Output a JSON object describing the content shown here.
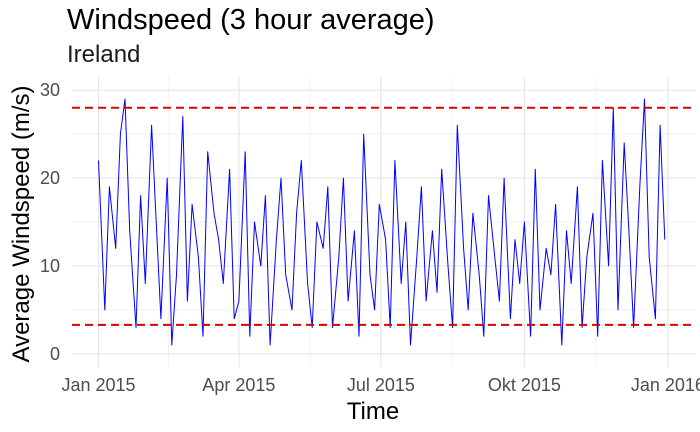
{
  "chart_data": {
    "type": "line",
    "title": "Windspeed (3 hour average)",
    "subtitle": "Ireland",
    "xlabel": "Time",
    "ylabel": "Average Windspeed (m/s)",
    "x_tick_labels": [
      "Jan 2015",
      "Apr 2015",
      "Jul 2015",
      "Okt 2015",
      "Jan 2016"
    ],
    "x_ticks": [
      "2015-01-01",
      "2015-04-01",
      "2015-07-01",
      "2015-10-01",
      "2016-01-01"
    ],
    "y_ticks": [
      0,
      10,
      20,
      30
    ],
    "xlim": [
      "2014-12-15",
      "2016-01-19"
    ],
    "ylim": [
      -1.5,
      31.5
    ],
    "grid": true,
    "series_color": "#0000ff",
    "reference_line_color": "#dd0000",
    "reference_lines": [
      28.0,
      3.3
    ],
    "series": [
      {
        "x": [
          "2015-01-01",
          "2015-01-05",
          "2015-01-08",
          "2015-01-12",
          "2015-01-15",
          "2015-01-18",
          "2015-01-21",
          "2015-01-25",
          "2015-01-28",
          "2015-01-31",
          "2015-02-04",
          "2015-02-07",
          "2015-02-10",
          "2015-02-14",
          "2015-02-17",
          "2015-02-20",
          "2015-02-24",
          "2015-02-27",
          "2015-03-02",
          "2015-03-06",
          "2015-03-09",
          "2015-03-12",
          "2015-03-16",
          "2015-03-19",
          "2015-03-22",
          "2015-03-26",
          "2015-03-29",
          "2015-04-01",
          "2015-04-05",
          "2015-04-08",
          "2015-04-11",
          "2015-04-15",
          "2015-04-18",
          "2015-04-21",
          "2015-04-25",
          "2015-04-28",
          "2015-05-01",
          "2015-05-05",
          "2015-05-08",
          "2015-05-11",
          "2015-05-15",
          "2015-05-18",
          "2015-05-21",
          "2015-05-25",
          "2015-05-28",
          "2015-05-31",
          "2015-06-04",
          "2015-06-07",
          "2015-06-10",
          "2015-06-14",
          "2015-06-17",
          "2015-06-20",
          "2015-06-24",
          "2015-06-27",
          "2015-06-30",
          "2015-07-04",
          "2015-07-07",
          "2015-07-10",
          "2015-07-14",
          "2015-07-17",
          "2015-07-20",
          "2015-07-24",
          "2015-07-27",
          "2015-07-30",
          "2015-08-03",
          "2015-08-06",
          "2015-08-09",
          "2015-08-13",
          "2015-08-16",
          "2015-08-19",
          "2015-08-23",
          "2015-08-26",
          "2015-08-29",
          "2015-09-02",
          "2015-09-05",
          "2015-09-08",
          "2015-09-12",
          "2015-09-15",
          "2015-09-18",
          "2015-09-22",
          "2015-09-25",
          "2015-09-28",
          "2015-10-01",
          "2015-10-05",
          "2015-10-08",
          "2015-10-11",
          "2015-10-15",
          "2015-10-18",
          "2015-10-21",
          "2015-10-25",
          "2015-10-28",
          "2015-10-31",
          "2015-11-04",
          "2015-11-07",
          "2015-11-10",
          "2015-11-14",
          "2015-11-17",
          "2015-11-20",
          "2015-11-24",
          "2015-11-27",
          "2015-11-30",
          "2015-12-04",
          "2015-12-07",
          "2015-12-10",
          "2015-12-14",
          "2015-12-17",
          "2015-12-20",
          "2015-12-24",
          "2015-12-27",
          "2015-12-30"
        ],
        "y": [
          22,
          5,
          19,
          12,
          25,
          29,
          14,
          3,
          18,
          8,
          26,
          15,
          4,
          20,
          1,
          9,
          27,
          6,
          17,
          11,
          2,
          23,
          16,
          13,
          8,
          21,
          4,
          6,
          23,
          2,
          15,
          10,
          18,
          1,
          13,
          20,
          9,
          5,
          16,
          22,
          8,
          3,
          15,
          12,
          19,
          3,
          11,
          20,
          6,
          14,
          2,
          25,
          9,
          5,
          17,
          13,
          3,
          22,
          8,
          15,
          1,
          11,
          19,
          6,
          14,
          7,
          21,
          10,
          3,
          26,
          12,
          5,
          16,
          9,
          2,
          18,
          11,
          6,
          20,
          4,
          13,
          8,
          15,
          2,
          21,
          5,
          12,
          9,
          17,
          1,
          14,
          8,
          19,
          3,
          11,
          16,
          2,
          22,
          10,
          28,
          5,
          24,
          14,
          3,
          19,
          29,
          11,
          4,
          26,
          13
        ]
      }
    ]
  }
}
